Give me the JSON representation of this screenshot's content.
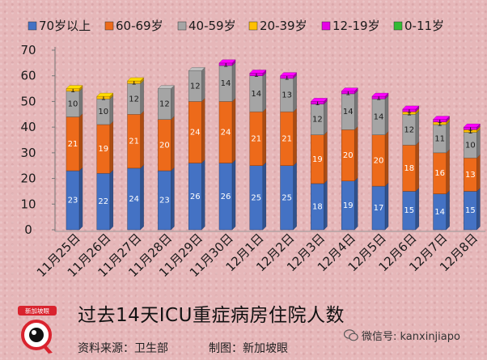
{
  "chart_data": {
    "type": "stacked-bar",
    "title": "过去14天ICU重症病房住院人数",
    "categories": [
      "11月25日",
      "11月26日",
      "11月27日",
      "11月28日",
      "11月29日",
      "11月30日",
      "12月1日",
      "12月2日",
      "12月3日",
      "12月4日",
      "12月5日",
      "12月6日",
      "12月7日",
      "12月8日"
    ],
    "ylim": [
      0,
      70
    ],
    "yticks": [
      0,
      10,
      20,
      30,
      40,
      50,
      60,
      70
    ],
    "grid": false,
    "legend_position": "top",
    "series": [
      {
        "name": "70岁以上",
        "color": "#4472c4",
        "values": [
          23,
          22,
          24,
          23,
          26,
          26,
          25,
          25,
          18,
          19,
          17,
          15,
          14,
          15
        ]
      },
      {
        "name": "60-69岁",
        "color": "#ed6a1a",
        "values": [
          21,
          19,
          21,
          20,
          24,
          24,
          21,
          21,
          19,
          20,
          20,
          18,
          16,
          13
        ]
      },
      {
        "name": "40-59岁",
        "color": "#a5a5a5",
        "values": [
          10,
          10,
          12,
          12,
          12,
          14,
          14,
          13,
          12,
          14,
          14,
          12,
          11,
          10
        ]
      },
      {
        "name": "20-39岁",
        "color": "#ffc000",
        "values": [
          1,
          1,
          1,
          0,
          0,
          0,
          0,
          0,
          0,
          0,
          0,
          1,
          1,
          1
        ]
      },
      {
        "name": "12-19岁",
        "color": "#e600e6",
        "values": [
          0,
          0,
          0,
          0,
          0,
          1,
          1,
          1,
          1,
          1,
          1,
          1,
          1,
          1
        ]
      },
      {
        "name": "0-11岁",
        "color": "#33bb33",
        "values": [
          0,
          0,
          0,
          0,
          0,
          0,
          0,
          0,
          0,
          0,
          0,
          0,
          0,
          0
        ]
      }
    ]
  },
  "footer": {
    "source": "资料来源：卫生部",
    "maker": "制图：新加坡眼",
    "wechat": "微信号: kanxinjiapo",
    "logo_text": "新加坡眼"
  },
  "colors": {
    "background": "#e6b7b9",
    "logo_red": "#d9232e"
  }
}
